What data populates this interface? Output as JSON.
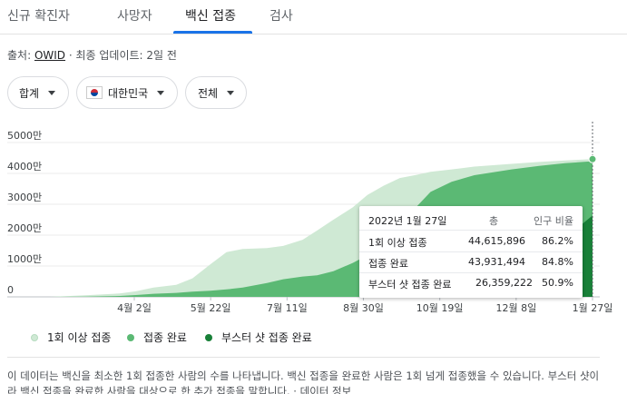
{
  "tabs": [
    "신규 확진자",
    "사망자",
    "백신 접종",
    "검사"
  ],
  "source": {
    "prefix": "출처: ",
    "link": "OWID",
    "suffix": " · 최종 업데이트: 2일 전"
  },
  "filters": {
    "metric": "합계",
    "country": "대한민국",
    "flag_icon": "korea-flag-icon",
    "scope": "전체"
  },
  "tooltip": {
    "date": "2022년 1월 27일",
    "col_total": "총",
    "col_pct": "인구 비율",
    "rows": [
      {
        "label": "1회 이상 접종",
        "total": "44,615,896",
        "pct": "86.2%"
      },
      {
        "label": "접종 완료",
        "total": "43,931,494",
        "pct": "84.8%"
      },
      {
        "label": "부스터 샷 접종 완료",
        "total": "26,359,222",
        "pct": "50.9%"
      }
    ]
  },
  "legend": [
    {
      "label": "1회 이상 접종",
      "color": "#cfe9d4"
    },
    {
      "label": "접종 완료",
      "color": "#5bb974"
    },
    {
      "label": "부스터 샷 접종 완료",
      "color": "#188038"
    }
  ],
  "footnote": {
    "text": "이 데이터는 백신을 최소한 1회 접종한 사람의 수를 나타냅니다. 백신 접종을 완료한 사람은 1회 넘게 접종했을 수 있습니다. 부스터 샷이라 백신 접종을 완료한 사람을 대상으로 한 추가 접종을 말합니다.",
    "link": "데이터 정보"
  },
  "chart_data": {
    "type": "area",
    "x": [
      "2021-02-26",
      "2021-03-20",
      "2021-04-10",
      "2021-04-20",
      "2021-05-01",
      "2021-05-15",
      "2021-05-25",
      "2021-06-05",
      "2021-06-15",
      "2021-06-25",
      "2021-07-10",
      "2021-07-20",
      "2021-08-01",
      "2021-08-10",
      "2021-08-20",
      "2021-09-01",
      "2021-09-10",
      "2021-09-20",
      "2021-09-30",
      "2021-10-10",
      "2021-10-19",
      "2021-11-01",
      "2021-11-15",
      "2021-12-08",
      "2021-12-25",
      "2022-01-10",
      "2022-01-27"
    ],
    "xticks": [
      "4월 2일",
      "5월 22일",
      "7월 11일",
      "8월 30일",
      "10월 19일",
      "12월 8일",
      "1월 27일"
    ],
    "yticks": [
      "0",
      "1000만",
      "2000만",
      "3000만",
      "4000만",
      "5000만"
    ],
    "ylim": [
      0,
      50000000
    ],
    "series": [
      {
        "name": "1회 이상 접종",
        "color": "#cfe9d4",
        "values": [
          0,
          500000,
          1100000,
          1800000,
          3000000,
          3900000,
          6000000,
          10500000,
          14500000,
          15500000,
          15800000,
          16500000,
          18500000,
          21500000,
          25000000,
          29000000,
          33000000,
          36000000,
          38500000,
          39500000,
          40500000,
          41300000,
          42200000,
          43100000,
          43700000,
          44200000,
          44615896
        ]
      },
      {
        "name": "접종 완료",
        "color": "#5bb974",
        "values": [
          0,
          100000,
          300000,
          600000,
          1000000,
          1300000,
          1700000,
          2000000,
          2400000,
          3000000,
          4500000,
          5700000,
          6600000,
          7000000,
          8300000,
          11000000,
          13500000,
          16500000,
          22000000,
          29000000,
          34000000,
          37300000,
          39400000,
          41300000,
          42400000,
          43300000,
          43931494
        ]
      },
      {
        "name": "부스터 샷 접종 완료",
        "color": "#188038",
        "values": [
          0,
          0,
          0,
          0,
          0,
          0,
          0,
          0,
          0,
          0,
          0,
          0,
          0,
          0,
          0,
          0,
          0,
          0,
          0,
          0,
          0,
          100000,
          500000,
          4000000,
          12000000,
          19000000,
          26359222
        ]
      }
    ]
  }
}
